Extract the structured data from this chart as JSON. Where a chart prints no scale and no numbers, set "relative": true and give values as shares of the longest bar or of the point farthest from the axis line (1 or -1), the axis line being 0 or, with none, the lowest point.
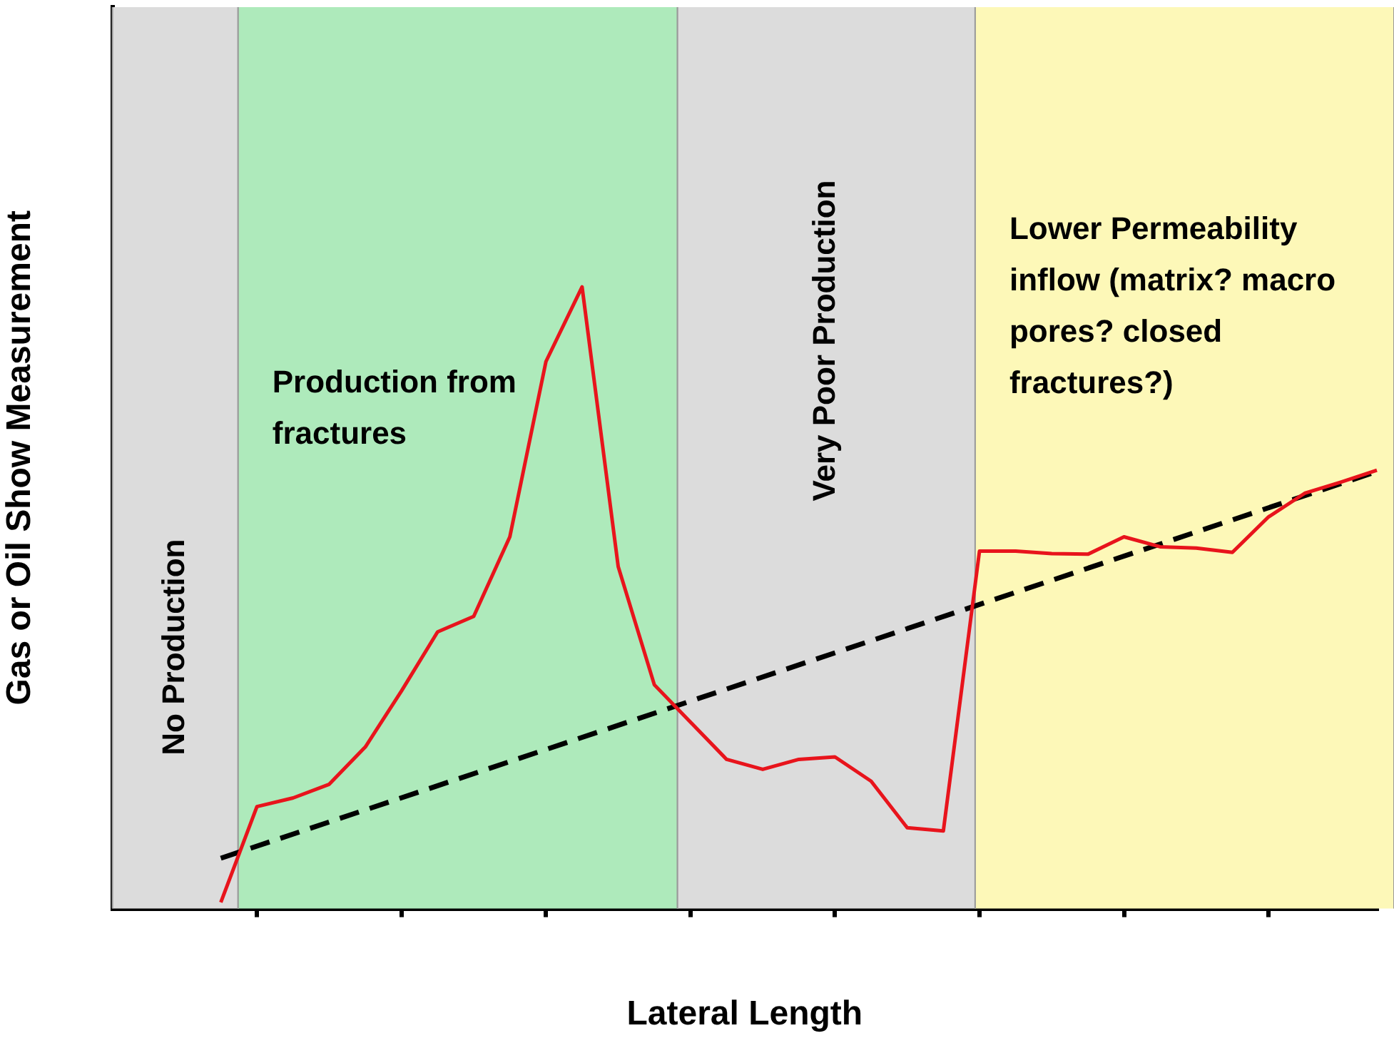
{
  "chart_data": {
    "type": "line",
    "relative": true,
    "xlabel": "Lateral Length",
    "ylabel": "Gas or Oil Show Measurement",
    "legend": false,
    "marker": "none",
    "categories": [
      null,
      null,
      null,
      null,
      null,
      null,
      null,
      null,
      null,
      null,
      null,
      null,
      null,
      null,
      null,
      null,
      null,
      null,
      null,
      null,
      null,
      null,
      null,
      null,
      null,
      null,
      null,
      null,
      null,
      null,
      null,
      null,
      null,
      null,
      null,
      null
    ],
    "annotations": [
      "No Production",
      "Production from fractures",
      "Very Poor Production",
      "Lower Permeability inflow (matrix? macro pores? closed fractures?)"
    ],
    "series": [
      {
        "color": "#e8141c",
        "line_style": "solid",
        "values": [
          null,
          null,
          null,
          0.01,
          0.164,
          0.178,
          0.2,
          0.26,
          0.35,
          0.445,
          0.47,
          0.598,
          0.88,
          1,
          0.55,
          0.36,
          0.3,
          0.24,
          0.224,
          0.24,
          0.244,
          0.205,
          0.13,
          0.125,
          0.575,
          0.575,
          0.571,
          0.57,
          0.598,
          0.582,
          0.58,
          0.573,
          0.63,
          0.668,
          0.686,
          0.705
        ]
      },
      {
        "color": "#000000",
        "line_style": "dashed",
        "values": [
          null,
          null,
          null,
          0.081,
          null,
          null,
          null,
          null,
          null,
          null,
          null,
          null,
          null,
          null,
          null,
          null,
          null,
          null,
          null,
          null,
          null,
          null,
          null,
          null,
          null,
          null,
          null,
          null,
          null,
          null,
          null,
          null,
          null,
          null,
          null,
          0.703
        ]
      }
    ]
  }
}
